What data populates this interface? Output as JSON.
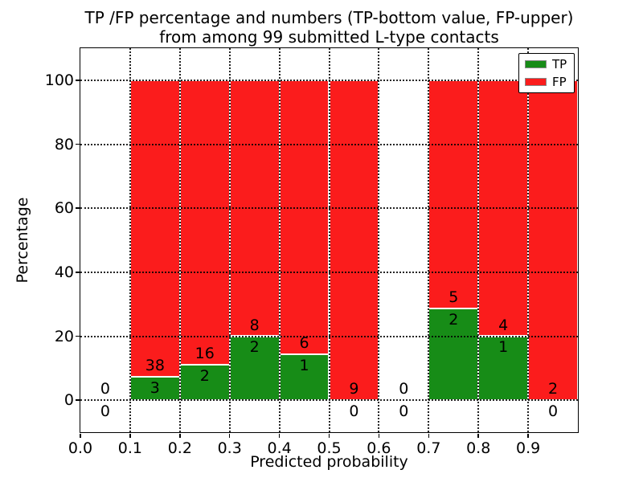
{
  "title": {
    "line1": "TP /FP percentage and numbers (TP-bottom value, FP-upper)",
    "line2": "from among 99 submitted L-type contacts"
  },
  "axes": {
    "xlabel": "Predicted probability",
    "ylabel": "Percentage",
    "xtick_labels": [
      "0.0",
      "0.1",
      "0.2",
      "0.3",
      "0.4",
      "0.5",
      "0.6",
      "0.7",
      "0.8",
      "0.9"
    ],
    "ytick_labels": [
      "0",
      "20",
      "40",
      "60",
      "80",
      "100"
    ]
  },
  "legend": {
    "items": [
      {
        "label": "TP",
        "color": "#178c17"
      },
      {
        "label": "FP",
        "color": "#fb1c1c"
      }
    ]
  },
  "colors": {
    "tp": "#178c17",
    "fp": "#fb1c1c",
    "grid": "#000000",
    "background": "#ffffff"
  },
  "chart_data": {
    "type": "bar",
    "stacked": true,
    "title": "TP /FP percentage and numbers (TP-bottom value, FP-upper) from among 99 submitted L-type contacts",
    "xlabel": "Predicted probability",
    "ylabel": "Percentage",
    "xlim": [
      0.0,
      1.0
    ],
    "ylim": [
      -10,
      110
    ],
    "xticks": [
      0.0,
      0.1,
      0.2,
      0.3,
      0.4,
      0.5,
      0.6,
      0.7,
      0.8,
      0.9
    ],
    "yticks": [
      0,
      20,
      40,
      60,
      80,
      100
    ],
    "grid": "dotted, drawn above bars",
    "legend_position": "upper right",
    "total_contacts": 99,
    "series_note": "Green TP segment height = tp/(tp+fp)*100; red FP segment fills up to 100%. Counts annotated: FP count above green top, TP count below green top; zero bins annotated 0 above and below baseline.",
    "bins": [
      {
        "range": [
          0.0,
          0.1
        ],
        "tp": 0,
        "fp": 0
      },
      {
        "range": [
          0.1,
          0.2
        ],
        "tp": 3,
        "fp": 38
      },
      {
        "range": [
          0.2,
          0.3
        ],
        "tp": 2,
        "fp": 16
      },
      {
        "range": [
          0.3,
          0.4
        ],
        "tp": 2,
        "fp": 8
      },
      {
        "range": [
          0.4,
          0.5
        ],
        "tp": 1,
        "fp": 6
      },
      {
        "range": [
          0.5,
          0.6
        ],
        "tp": 0,
        "fp": 9
      },
      {
        "range": [
          0.6,
          0.7
        ],
        "tp": 0,
        "fp": 0
      },
      {
        "range": [
          0.7,
          0.8
        ],
        "tp": 2,
        "fp": 5
      },
      {
        "range": [
          0.8,
          0.9
        ],
        "tp": 1,
        "fp": 4
      },
      {
        "range": [
          0.9,
          1.0
        ],
        "tp": 0,
        "fp": 2
      }
    ]
  }
}
